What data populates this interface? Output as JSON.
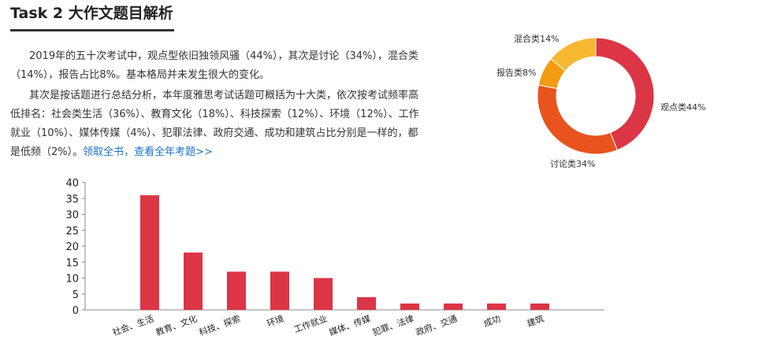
{
  "header": {
    "title": "Task 2 大作文题目解析"
  },
  "paragraphs": {
    "p1": "2019年的五十次考试中，观点型依旧独领风骚（44%），其次是讨论（34%），混合类（14%），报告占比8%。基本格局并未发生很大的变化。",
    "p2": "其次是按话题进行总结分析，本年度雅思考试话题可概括为十大类，依次按考试频率高低排名：社会类生活（36%）、教育文化（18%）、科技探索（12%）、环境（12%）、工作就业（10%）、媒体传媒（4%）、犯罪法律、政府交通、成功和建筑占比分别是一样的，都是低频（2%）。",
    "link": "领取全书，查看全年考题>>"
  },
  "chart_data": [
    {
      "type": "pie",
      "donut": true,
      "labels": [
        "观点类44%",
        "讨论类34%",
        "报告类8%",
        "混合类14%"
      ],
      "values": [
        44,
        34,
        8,
        14
      ],
      "colors": [
        "#dc3545",
        "#e8531e",
        "#f39c12",
        "#f6b731"
      ]
    },
    {
      "type": "bar",
      "categories": [
        "社会、生活",
        "教育、文化",
        "科技、探索",
        "环境",
        "工作就业",
        "媒体、传媒",
        "犯罪、法律",
        "政府、交通",
        "成功",
        "建筑"
      ],
      "values": [
        36,
        18,
        12,
        12,
        10,
        4,
        2,
        2,
        2,
        2
      ],
      "ylim": [
        0,
        40
      ],
      "yticks": [
        0,
        5,
        10,
        15,
        20,
        25,
        30,
        35,
        40
      ],
      "color": "#dc3545",
      "grid": false
    }
  ]
}
